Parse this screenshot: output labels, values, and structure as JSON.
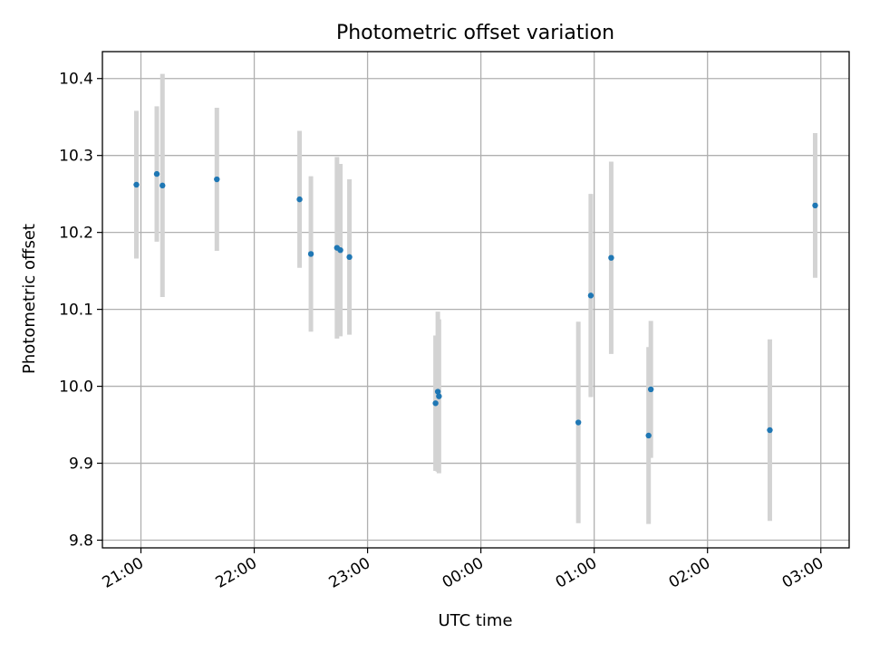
{
  "chart_data": {
    "type": "scatter",
    "title": "Photometric offset variation",
    "xlabel": "UTC time",
    "ylabel": "Photometric offset",
    "x_unit": "hours",
    "xlim": [
      20.66,
      27.25
    ],
    "ylim": [
      9.79,
      10.435
    ],
    "x_ticks": [
      {
        "value": 21,
        "label": "21:00"
      },
      {
        "value": 22,
        "label": "22:00"
      },
      {
        "value": 23,
        "label": "23:00"
      },
      {
        "value": 24,
        "label": "00:00"
      },
      {
        "value": 25,
        "label": "01:00"
      },
      {
        "value": 26,
        "label": "02:00"
      },
      {
        "value": 27,
        "label": "03:00"
      }
    ],
    "y_ticks": [
      {
        "value": 9.8,
        "label": "9.8"
      },
      {
        "value": 9.9,
        "label": "9.9"
      },
      {
        "value": 10.0,
        "label": "10.0"
      },
      {
        "value": 10.1,
        "label": "10.1"
      },
      {
        "value": 10.2,
        "label": "10.2"
      },
      {
        "value": 10.3,
        "label": "10.3"
      },
      {
        "value": 10.4,
        "label": "10.4"
      }
    ],
    "grid": true,
    "colors": {
      "point": "#1f77b4",
      "errorbar": "#d3d3d3"
    },
    "points": [
      {
        "x": 20.96,
        "y": 10.262,
        "err": 0.096
      },
      {
        "x": 21.14,
        "y": 10.276,
        "err": 0.088
      },
      {
        "x": 21.19,
        "y": 10.261,
        "err": 0.145
      },
      {
        "x": 21.67,
        "y": 10.269,
        "err": 0.093
      },
      {
        "x": 22.4,
        "y": 10.243,
        "err": 0.089
      },
      {
        "x": 22.5,
        "y": 10.172,
        "err": 0.101
      },
      {
        "x": 22.73,
        "y": 10.18,
        "err": 0.118
      },
      {
        "x": 22.76,
        "y": 10.177,
        "err": 0.112
      },
      {
        "x": 22.84,
        "y": 10.168,
        "err": 0.101
      },
      {
        "x": 23.6,
        "y": 9.978,
        "err": 0.088
      },
      {
        "x": 23.62,
        "y": 9.993,
        "err": 0.104
      },
      {
        "x": 23.63,
        "y": 9.987,
        "err": 0.1
      },
      {
        "x": 24.86,
        "y": 9.953,
        "err": 0.131
      },
      {
        "x": 24.97,
        "y": 10.118,
        "err": 0.132
      },
      {
        "x": 25.15,
        "y": 10.167,
        "err": 0.125
      },
      {
        "x": 25.48,
        "y": 9.936,
        "err": 0.115
      },
      {
        "x": 25.5,
        "y": 9.996,
        "err": 0.089
      },
      {
        "x": 26.55,
        "y": 9.943,
        "err": 0.118
      },
      {
        "x": 26.95,
        "y": 10.235,
        "err": 0.094
      }
    ]
  }
}
